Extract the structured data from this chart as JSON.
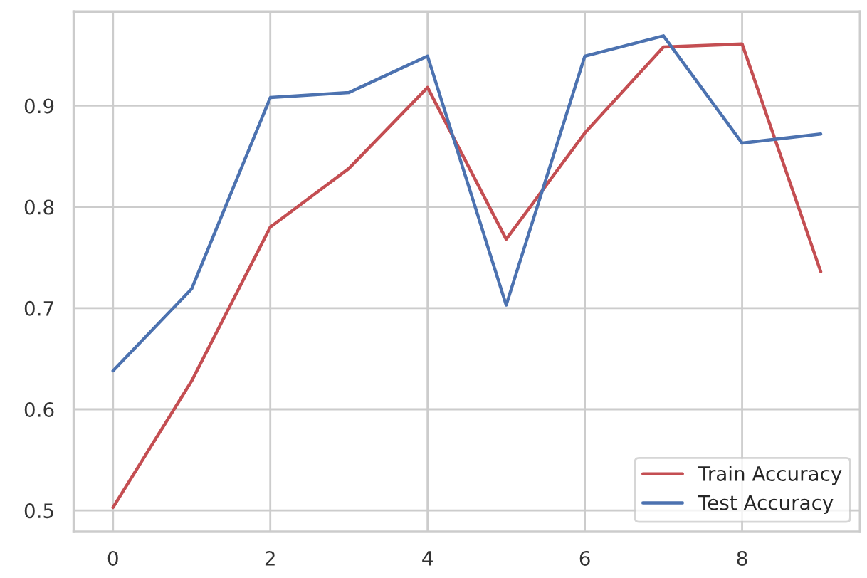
{
  "chart_data": {
    "type": "line",
    "x": [
      0,
      1,
      2,
      3,
      4,
      5,
      6,
      7,
      8,
      9
    ],
    "series": [
      {
        "name": "Train Accuracy",
        "color": "#c44e52",
        "values": [
          0.503,
          0.628,
          0.78,
          0.838,
          0.918,
          0.768,
          0.873,
          0.958,
          0.961,
          0.736
        ]
      },
      {
        "name": "Test Accuracy",
        "color": "#4c72b0",
        "values": [
          0.638,
          0.719,
          0.908,
          0.913,
          0.949,
          0.703,
          0.949,
          0.969,
          0.863,
          0.872
        ]
      }
    ],
    "xlim": [
      -0.5,
      9.5
    ],
    "xticks": [
      0,
      2,
      4,
      6,
      8
    ],
    "ylim": [
      0.479,
      0.993
    ],
    "yticks": [
      0.5,
      0.6,
      0.7,
      0.8,
      0.9
    ],
    "grid": true,
    "legend": "bottom right"
  }
}
